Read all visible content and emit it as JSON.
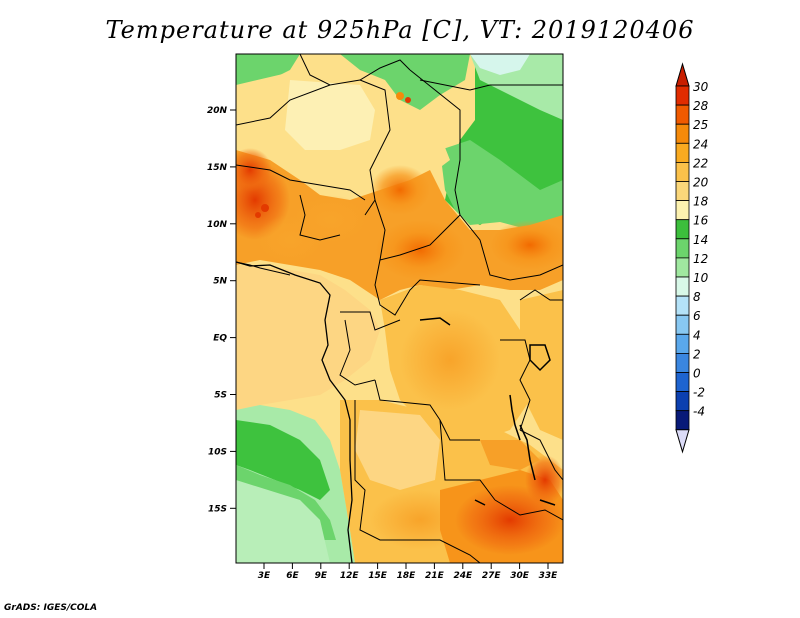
{
  "title": "Temperature at 925hPa [C], VT: 2019120406",
  "credit": "GrADS: IGES/COLA",
  "map": {
    "lat_ticks": [
      "20N",
      "15N",
      "10N",
      "5N",
      "EQ",
      "5S",
      "10S",
      "15S"
    ],
    "lon_ticks": [
      "3E",
      "6E",
      "9E",
      "12E",
      "15E",
      "18E",
      "21E",
      "24E",
      "27E",
      "30E",
      "33E"
    ]
  },
  "legend": {
    "labels": [
      "30",
      "28",
      "25",
      "24",
      "22",
      "20",
      "18",
      "16",
      "14",
      "12",
      "10",
      "8",
      "6",
      "4",
      "2",
      "0",
      "-2",
      "-4"
    ],
    "colors": [
      "#e12c00",
      "#f05a00",
      "#f58a0a",
      "#f9aa20",
      "#fbc14a",
      "#fbd77a",
      "#fdf2b0",
      "#3cbf3c",
      "#6cd46c",
      "#a0e8a0",
      "#d8f8e8",
      "#b4e2f8",
      "#88c8f2",
      "#5aa8ec",
      "#3a86e0",
      "#1e64d0",
      "#0c40b0",
      "#081a78"
    ],
    "top_arrow_color": "#c81e00",
    "bottom_arrow_color": "#dcdcf8"
  }
}
